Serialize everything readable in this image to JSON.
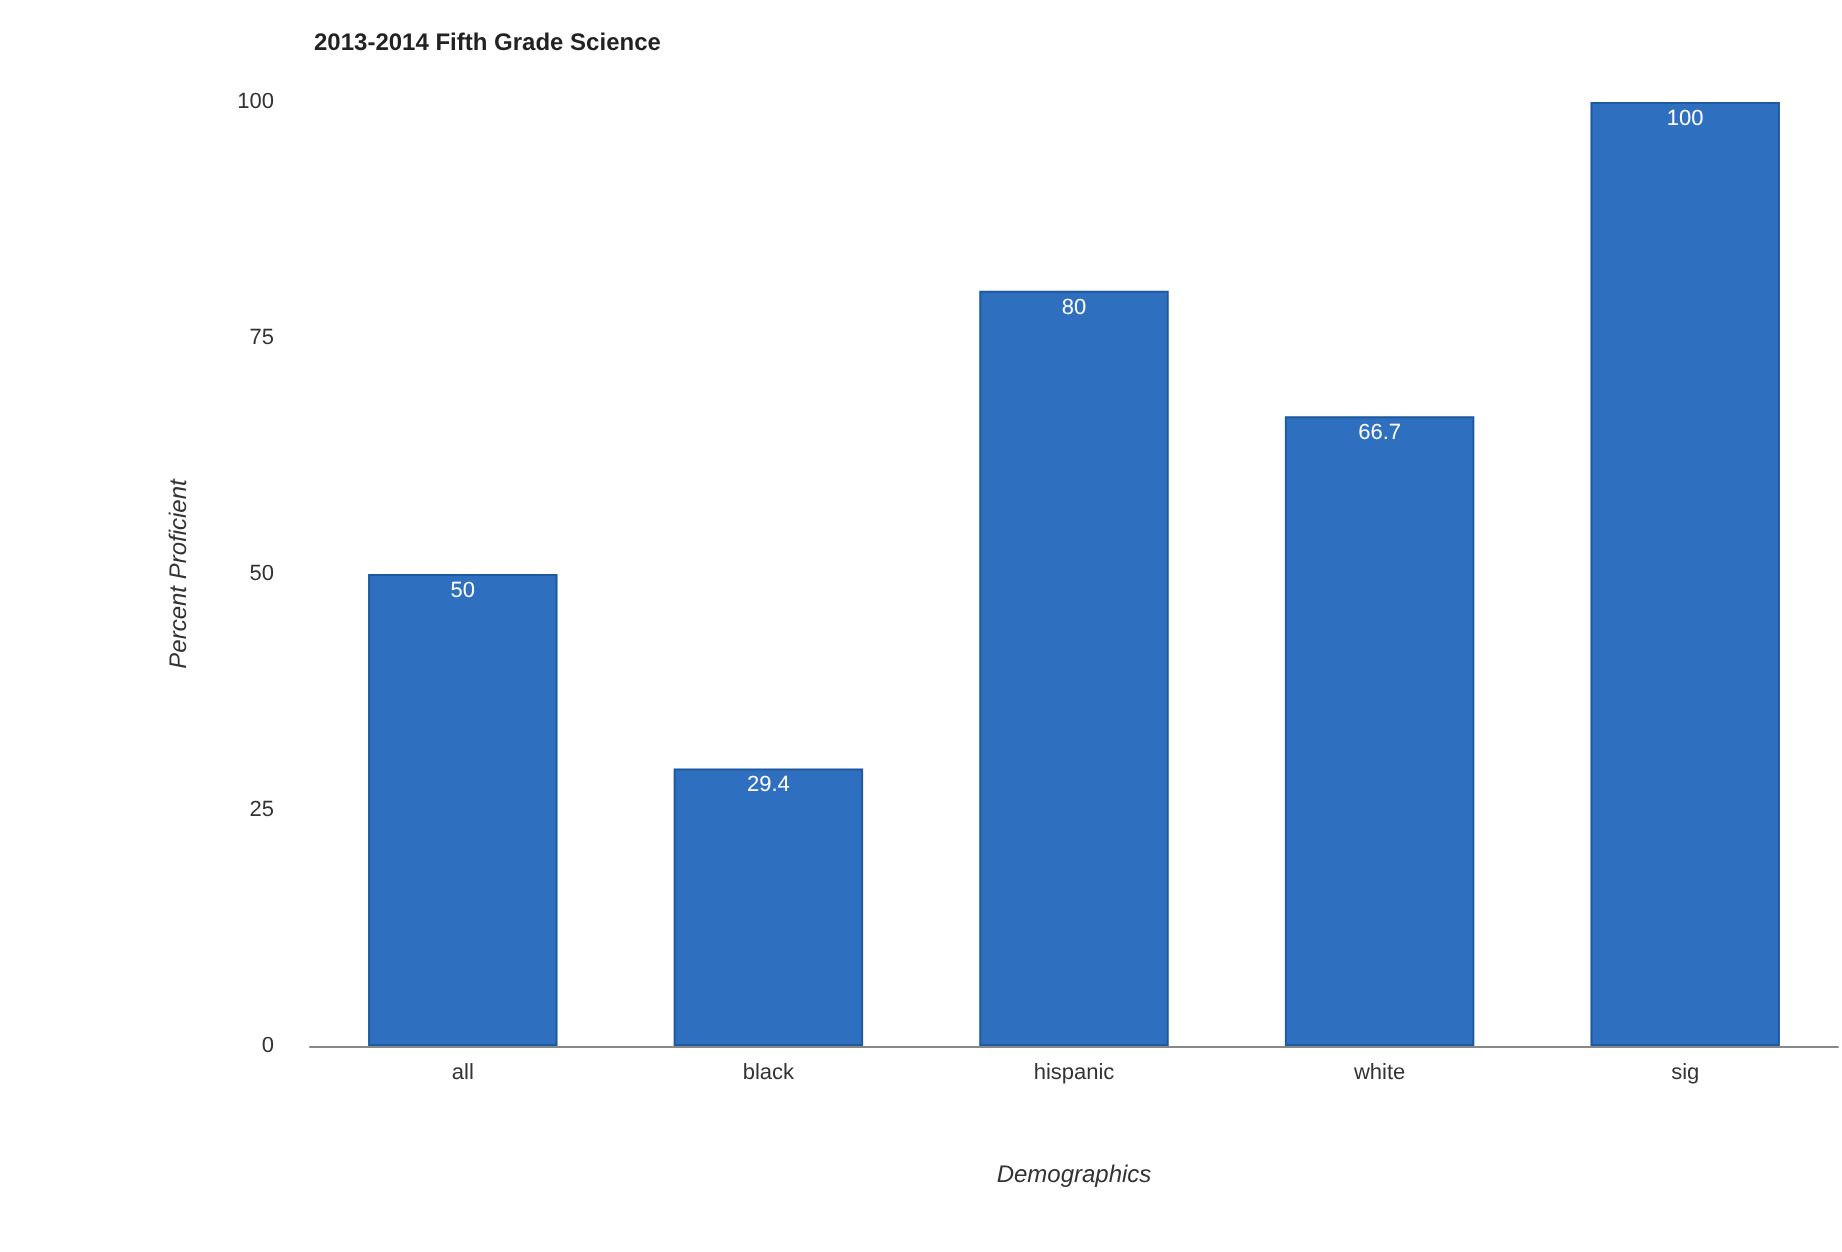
{
  "chart_data": {
    "type": "bar",
    "title": "2013-2014 Fifth Grade Science",
    "xlabel": "Demographics",
    "ylabel": "Percent Proficient",
    "categories": [
      "all",
      "black",
      "hispanic",
      "white",
      "sig"
    ],
    "values": [
      50,
      29.4,
      80,
      66.7,
      100
    ],
    "color": "#2f6fbf",
    "ylim": [
      0,
      100
    ],
    "yticks": [
      0,
      25,
      50,
      75,
      100
    ],
    "grid": false,
    "data_labels": true
  }
}
